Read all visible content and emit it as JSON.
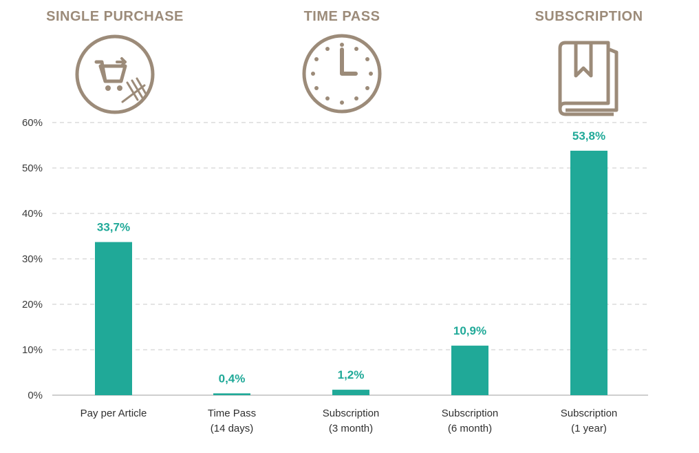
{
  "colors": {
    "bar": "#20a998",
    "label": "#20a998",
    "accent": "#9c8b79",
    "grid": "#c8c8c8",
    "axis": "#bdbdbd"
  },
  "groups": [
    {
      "title": "SINGLE PURCHASE",
      "icon": "shopping-cart-icon"
    },
    {
      "title": "TIME PASS",
      "icon": "clock-icon"
    },
    {
      "title": "SUBSCRIPTION",
      "icon": "book-bookmark-icon"
    }
  ],
  "chart_data": {
    "type": "bar",
    "categories": [
      [
        "Pay per Article"
      ],
      [
        "Time Pass",
        "(14 days)"
      ],
      [
        "Subscription",
        "(3 month)"
      ],
      [
        "Subscription",
        "(6 month)"
      ],
      [
        "Subscription",
        "(1 year)"
      ]
    ],
    "values": [
      33.7,
      0.4,
      1.2,
      10.9,
      53.8
    ],
    "data_labels": [
      "33,7%",
      "0,4%",
      "1,2%",
      "10,9%",
      "53,8%"
    ],
    "ylim": [
      0,
      60
    ],
    "yticks": [
      0,
      10,
      20,
      30,
      40,
      50,
      60
    ],
    "ytick_labels": [
      "0%",
      "10%",
      "20%",
      "30%",
      "40%",
      "50%",
      "60%"
    ],
    "grid": true,
    "xlabel": "",
    "ylabel": ""
  }
}
